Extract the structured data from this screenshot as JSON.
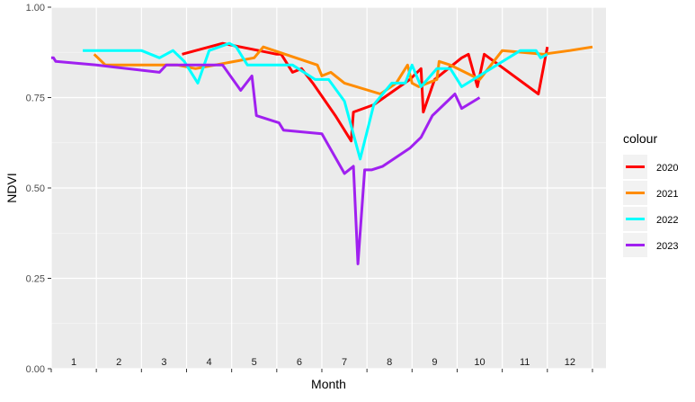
{
  "chart_data": {
    "type": "line",
    "title": "",
    "xlabel": "Month",
    "ylabel": "NDVI",
    "xlim": [
      0,
      12.3
    ],
    "ylim": [
      0,
      1
    ],
    "x_tick_labels": [
      "1",
      "2",
      "3",
      "4",
      "5",
      "6",
      "7",
      "8",
      "9",
      "10",
      "11",
      "12"
    ],
    "y_ticks": [
      0,
      0.25,
      0.5,
      0.75,
      1
    ],
    "y_tick_labels": [
      "0.00",
      "0.25",
      "0.50",
      "0.75",
      "1.00"
    ],
    "grid": true,
    "legend": {
      "title": "colour",
      "position": "right"
    },
    "series": [
      {
        "name": "2020",
        "color": "#ff0000",
        "points": [
          [
            2.9,
            0.87
          ],
          [
            3.8,
            0.9
          ],
          [
            4.6,
            0.88
          ],
          [
            5.0,
            0.87
          ],
          [
            5.1,
            0.87
          ],
          [
            5.35,
            0.82
          ],
          [
            5.55,
            0.83
          ],
          [
            5.8,
            0.79
          ],
          [
            6.3,
            0.7
          ],
          [
            6.65,
            0.63
          ],
          [
            6.7,
            0.71
          ],
          [
            7.15,
            0.73
          ],
          [
            7.95,
            0.8
          ],
          [
            8.2,
            0.83
          ],
          [
            8.25,
            0.71
          ],
          [
            8.5,
            0.8
          ],
          [
            9.1,
            0.86
          ],
          [
            9.25,
            0.87
          ],
          [
            9.45,
            0.78
          ],
          [
            9.6,
            0.87
          ],
          [
            10.8,
            0.76
          ],
          [
            11.0,
            0.89
          ]
        ]
      },
      {
        "name": "2021",
        "color": "#ff8c00",
        "points": [
          [
            0.95,
            0.87
          ],
          [
            1.2,
            0.84
          ],
          [
            2.8,
            0.84
          ],
          [
            3.2,
            0.83
          ],
          [
            4.5,
            0.86
          ],
          [
            4.7,
            0.89
          ],
          [
            5.9,
            0.84
          ],
          [
            6.0,
            0.81
          ],
          [
            6.2,
            0.82
          ],
          [
            6.5,
            0.79
          ],
          [
            7.3,
            0.76
          ],
          [
            7.65,
            0.79
          ],
          [
            7.9,
            0.84
          ],
          [
            8.0,
            0.79
          ],
          [
            8.15,
            0.78
          ],
          [
            8.55,
            0.8
          ],
          [
            8.6,
            0.85
          ],
          [
            8.85,
            0.84
          ],
          [
            9.5,
            0.8
          ],
          [
            10.0,
            0.88
          ],
          [
            10.9,
            0.87
          ],
          [
            11.5,
            0.88
          ],
          [
            12.0,
            0.89
          ]
        ]
      },
      {
        "name": "2022",
        "color": "#00ffff",
        "points": [
          [
            0.7,
            0.88
          ],
          [
            2.0,
            0.88
          ],
          [
            2.4,
            0.86
          ],
          [
            2.7,
            0.88
          ],
          [
            2.95,
            0.85
          ],
          [
            3.25,
            0.79
          ],
          [
            3.5,
            0.88
          ],
          [
            3.95,
            0.9
          ],
          [
            4.1,
            0.89
          ],
          [
            4.35,
            0.84
          ],
          [
            5.35,
            0.84
          ],
          [
            5.85,
            0.8
          ],
          [
            6.15,
            0.8
          ],
          [
            6.5,
            0.74
          ],
          [
            6.85,
            0.58
          ],
          [
            7.15,
            0.73
          ],
          [
            7.55,
            0.79
          ],
          [
            7.85,
            0.79
          ],
          [
            8.0,
            0.84
          ],
          [
            8.2,
            0.78
          ],
          [
            8.55,
            0.83
          ],
          [
            8.85,
            0.83
          ],
          [
            9.1,
            0.78
          ],
          [
            10.4,
            0.88
          ],
          [
            10.75,
            0.88
          ],
          [
            10.85,
            0.86
          ],
          [
            11.0,
            0.87
          ]
        ]
      },
      {
        "name": "2023",
        "color": "#a020f0",
        "points": [
          [
            0.0,
            0.86
          ],
          [
            0.05,
            0.86
          ],
          [
            0.1,
            0.85
          ],
          [
            1.0,
            0.84
          ],
          [
            2.4,
            0.82
          ],
          [
            2.55,
            0.84
          ],
          [
            3.2,
            0.84
          ],
          [
            3.8,
            0.84
          ],
          [
            4.2,
            0.77
          ],
          [
            4.45,
            0.81
          ],
          [
            4.55,
            0.7
          ],
          [
            5.05,
            0.68
          ],
          [
            5.15,
            0.66
          ],
          [
            6.0,
            0.65
          ],
          [
            6.5,
            0.54
          ],
          [
            6.7,
            0.56
          ],
          [
            6.8,
            0.29
          ],
          [
            6.95,
            0.55
          ],
          [
            7.1,
            0.55
          ],
          [
            7.35,
            0.56
          ],
          [
            7.95,
            0.61
          ],
          [
            8.2,
            0.64
          ],
          [
            8.45,
            0.7
          ],
          [
            8.95,
            0.76
          ],
          [
            9.1,
            0.72
          ],
          [
            9.5,
            0.75
          ]
        ]
      }
    ]
  }
}
